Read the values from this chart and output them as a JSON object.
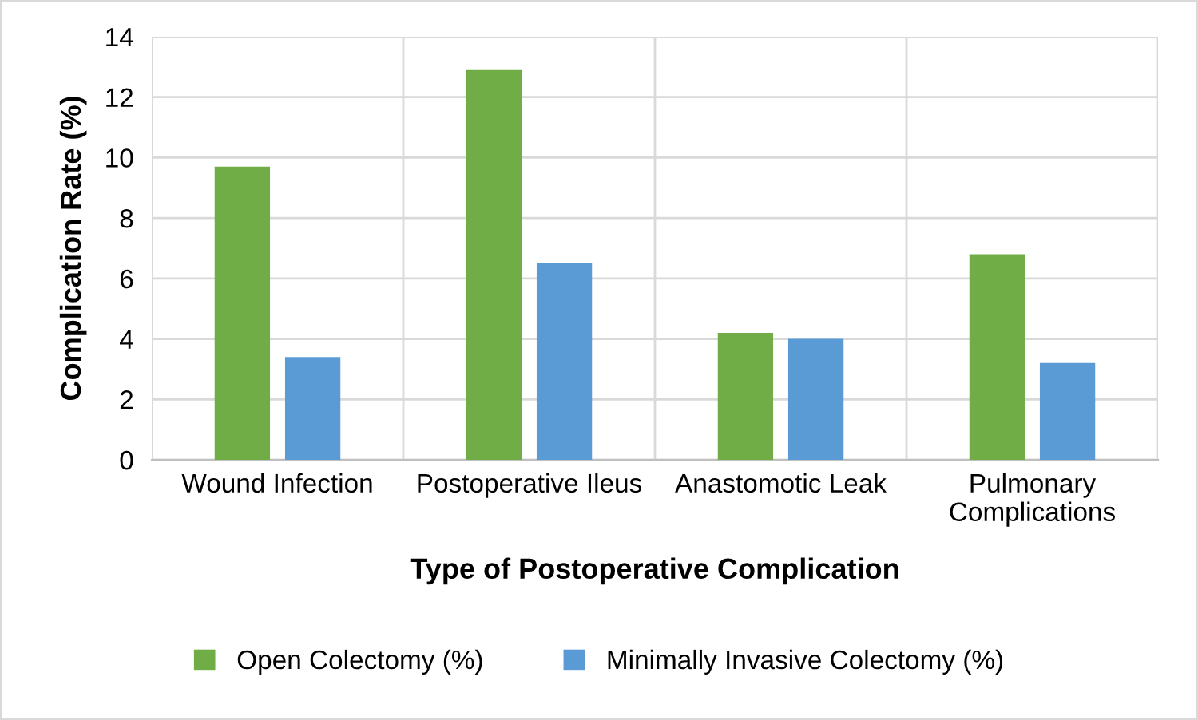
{
  "chart_data": {
    "type": "bar",
    "xlabel": "Type of Postoperative Complication",
    "ylabel": "Complication Rate (%)",
    "categories": [
      "Wound Infection",
      "Postoperative Ileus",
      "Anastomotic Leak",
      "Pulmonary Complications"
    ],
    "series": [
      {
        "name": "Open Colectomy (%)",
        "color": "#70ad47",
        "values": [
          9.7,
          12.9,
          4.2,
          6.8
        ]
      },
      {
        "name": "Minimally Invasive Colectomy (%)",
        "color": "#5b9bd5",
        "values": [
          3.4,
          6.5,
          4.0,
          3.2
        ]
      }
    ],
    "ylim": [
      0,
      14
    ],
    "yticks": [
      0,
      2,
      4,
      6,
      8,
      10,
      12,
      14
    ],
    "grid": true,
    "legend": "bottom"
  }
}
